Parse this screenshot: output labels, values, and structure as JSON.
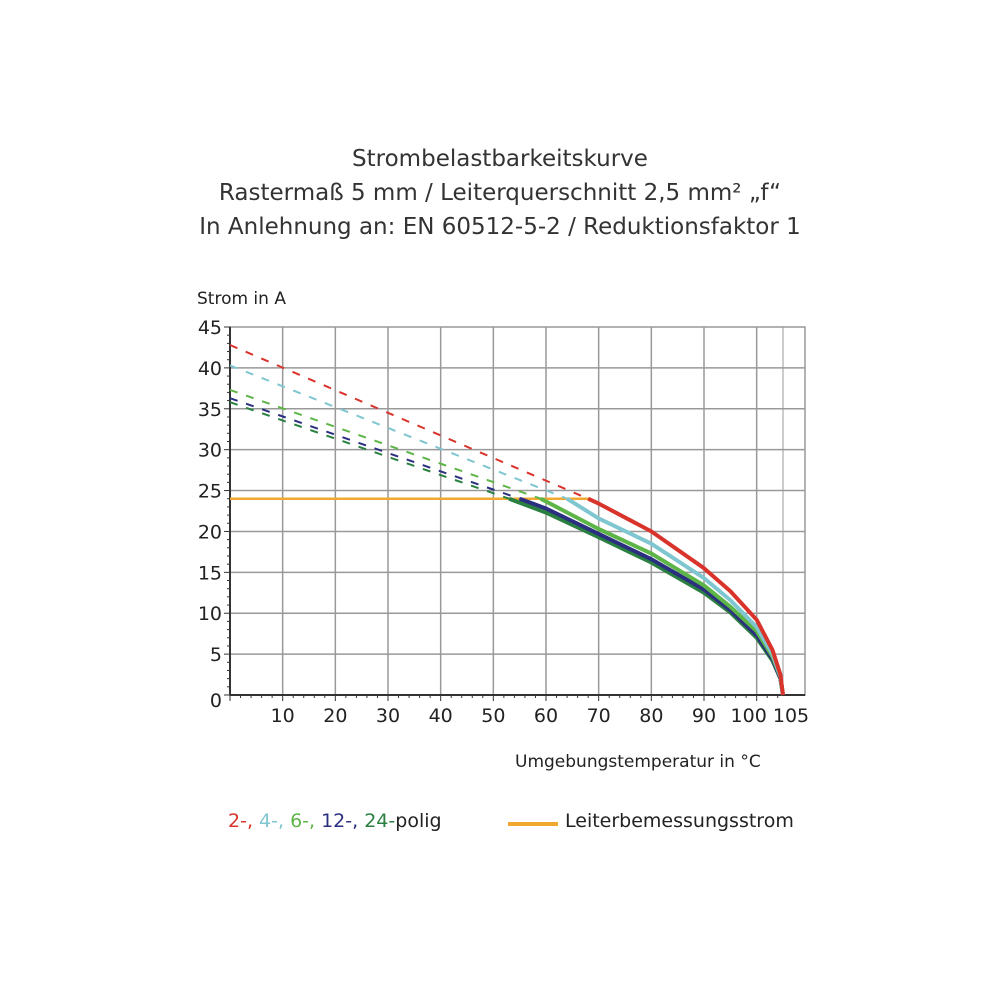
{
  "title_lines": [
    "Strombelastbarkeitskurve",
    "Rastermaß 5 mm / Leiterquerschnitt 2,5 mm² „f“",
    "In Anlehnung an: EN 60512-5-2 / Reduktionsfaktor 1"
  ],
  "chart_data": {
    "type": "line",
    "ylabel": "Strom in A",
    "xlabel": "Umgebungstemperatur in °C",
    "xlim": [
      0,
      105
    ],
    "ylim": [
      0,
      45
    ],
    "xticks": [
      10,
      20,
      30,
      40,
      50,
      60,
      70,
      80,
      90,
      100,
      105
    ],
    "yticks": [
      0,
      5,
      10,
      15,
      20,
      25,
      30,
      35,
      40,
      45
    ],
    "grid": true,
    "series": [
      {
        "name": "2-polig",
        "label": "2-,",
        "color": "#d9342b",
        "dashed_start": 42.8,
        "points": [
          [
            68,
            24
          ],
          [
            70,
            23.4
          ],
          [
            80,
            20
          ],
          [
            90,
            15.5
          ],
          [
            95,
            12.7
          ],
          [
            100,
            9.2
          ],
          [
            103,
            5.5
          ],
          [
            104.5,
            2.5
          ],
          [
            105,
            0
          ]
        ]
      },
      {
        "name": "4-polig",
        "label": "4-,",
        "color": "#7fc6d0",
        "dashed_start": 40.3,
        "points": [
          [
            64,
            24
          ],
          [
            70,
            21.6
          ],
          [
            80,
            18.5
          ],
          [
            90,
            14.3
          ],
          [
            95,
            11.6
          ],
          [
            100,
            8.3
          ],
          [
            103,
            5
          ],
          [
            104.5,
            2.3
          ],
          [
            105,
            0
          ]
        ]
      },
      {
        "name": "6-polig",
        "label": "6-,",
        "color": "#5db547",
        "dashed_start": 37.3,
        "points": [
          [
            59,
            24
          ],
          [
            70,
            20.3
          ],
          [
            80,
            17.3
          ],
          [
            90,
            13.4
          ],
          [
            95,
            10.8
          ],
          [
            100,
            7.8
          ],
          [
            103,
            4.7
          ],
          [
            104.5,
            2.2
          ],
          [
            105,
            0
          ]
        ]
      },
      {
        "name": "12-polig",
        "label": "12-,",
        "color": "#2b2f80",
        "dashed_start": 36.3,
        "points": [
          [
            55,
            24
          ],
          [
            60,
            22.8
          ],
          [
            70,
            19.7
          ],
          [
            80,
            16.6
          ],
          [
            90,
            12.9
          ],
          [
            95,
            10.4
          ],
          [
            100,
            7.3
          ],
          [
            103,
            4.4
          ],
          [
            104.5,
            2
          ],
          [
            105,
            0
          ]
        ]
      },
      {
        "name": "24-polig",
        "label": "24-",
        "color": "#2a8040",
        "dashed_start": 35.8,
        "points": [
          [
            53,
            24
          ],
          [
            60,
            22.3
          ],
          [
            70,
            19.3
          ],
          [
            80,
            16.2
          ],
          [
            90,
            12.5
          ],
          [
            95,
            10.1
          ],
          [
            100,
            7
          ],
          [
            103,
            4.2
          ],
          [
            104.5,
            2
          ],
          [
            105,
            0
          ]
        ]
      }
    ],
    "rated_current": {
      "name": "Leiterbemessungsstrom",
      "value": 24,
      "x_range": [
        0,
        68
      ],
      "color": "#f0a830"
    },
    "legend": {
      "series_suffix": "polig",
      "placement": "bottom"
    }
  }
}
